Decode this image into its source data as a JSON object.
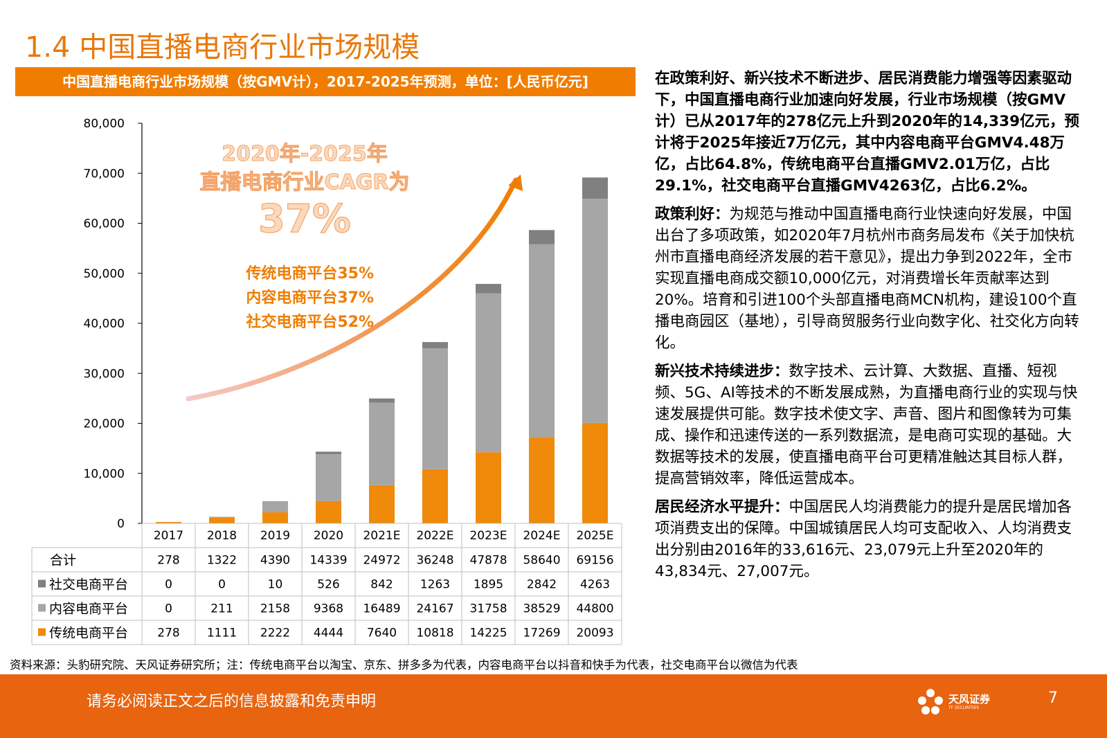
{
  "slide": {
    "title": "1.4 中国直播电商行业市场规模",
    "chart_caption": "中国直播电商行业市场规模（按GMV计），2017-2025年预测，单位：[人民币亿元]",
    "source": "资料来源：头豹研究院、天风证券研究所；注：传统电商平台以淘宝、京东、拼多多为代表，内容电商平台以抖音和快手为代表，社交电商平台以微信为代表",
    "disclaimer": "请务必阅读正文之后的信息披露和免责申明",
    "page_number": "7",
    "logo_name": "天风证券",
    "logo_sub": "TF SECURITIES"
  },
  "text": {
    "lead": "在政策利好、新兴技术不断进步、居民消费能力增强等因素驱动下，中国直播电商行业加速向好发展，行业市场规模（按GMV计）已从2017年的278亿元上升到2020年的14,339亿元，预计将于2025年接近7万亿元，其中内容电商平台GMV4.48万亿，占比64.8%，传统电商平台直播GMV2.01万亿，占比29.1%，社交电商平台直播GMV4263亿，占比6.2%。",
    "p1_head": "政策利好：",
    "p1_body": "为规范与推动中国直播电商行业快速向好发展，中国出台了多项政策，如2020年7月杭州市商务局发布《关于加快杭州市直播电商经济发展的若干意见》，提出力争到2022年，全市实现直播电商成交额10,000亿元，对消费增长年贡献率达到20%。培育和引进100个头部直播电商MCN机构，建设100个直播电商园区（基地），引导商贸服务行业向数字化、社交化方向转化。",
    "p2_head": "新兴技术持续进步：",
    "p2_body": "数字技术、云计算、大数据、直播、短视频、5G、AI等技术的不断发展成熟，为直播电商行业的实现与快速发展提供可能。数字技术使文字、声音、图片和图像转为可集成、操作和迅速传送的一系列数据流，是电商可实现的基础。大数据等技术的发展，使直播电商平台可更精准触达其目标人群，提高营销效率，降低运营成本。",
    "p3_head": "居民经济水平提升：",
    "p3_body": "中国居民人均消费能力的提升是居民增加各项消费支出的保障。中国城镇居民人均可支配收入、人均消费支出分别由2016年的33,616元、23,079元上升至2020年的43,834元、27,007元。"
  },
  "chart_data": {
    "type": "bar",
    "stacked": true,
    "categories": [
      "2017",
      "2018",
      "2019",
      "2020",
      "2021E",
      "2022E",
      "2023E",
      "2024E",
      "2025E"
    ],
    "ylim": [
      0,
      80000
    ],
    "yticks": [
      "0",
      "10,000",
      "20,000",
      "30,000",
      "40,000",
      "50,000",
      "60,000",
      "70,000",
      "80,000"
    ],
    "series": [
      {
        "name": "传统电商平台",
        "color": "#f08a0b",
        "values": [
          278,
          1111,
          2222,
          4444,
          7640,
          10818,
          14225,
          17269,
          20093
        ]
      },
      {
        "name": "内容电商平台",
        "color": "#a6a6a6",
        "values": [
          0,
          211,
          2158,
          9368,
          16489,
          24167,
          31758,
          38529,
          44800
        ]
      },
      {
        "name": "社交电商平台",
        "color": "#808080",
        "values": [
          0,
          0,
          10,
          526,
          842,
          1263,
          1895,
          2842,
          4263
        ]
      }
    ],
    "totals_label": "合计",
    "totals": [
      278,
      1322,
      4390,
      14339,
      24972,
      36248,
      47878,
      58640,
      69156
    ],
    "annotation": {
      "line1": "2020年-2025年",
      "line2": "直播电商行业CAGR为",
      "line3": "37%",
      "cagr": [
        {
          "label": "传统电商平台",
          "value": "35%"
        },
        {
          "label": "内容电商平台",
          "value": "37%"
        },
        {
          "label": "社交电商平台",
          "value": "52%"
        }
      ]
    }
  }
}
